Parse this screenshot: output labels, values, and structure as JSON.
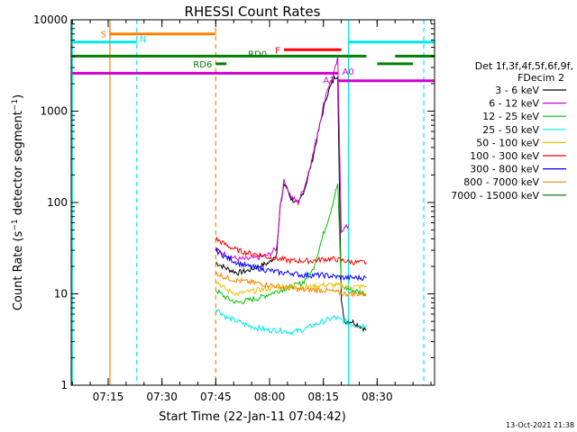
{
  "chart_data": {
    "type": "line",
    "title": "RHESSI Count Rates",
    "xlabel": "Start Time (22-Jan-11 07:04:42)",
    "ylabel": "Count Rate (s⁻¹ detector segment⁻¹)",
    "ylabel_main": "Count Rate (s",
    "ylabel_sup1": "−1",
    "ylabel_mid": " detector segment",
    "ylabel_sup2": "−1",
    "ylabel_end": ")",
    "y_scale": "log",
    "ylim": [
      1,
      10000
    ],
    "xlim": [
      "07:04:42",
      "08:46:00"
    ],
    "x_ticks": [
      "07:15",
      "07:30",
      "07:45",
      "08:00",
      "08:15",
      "08:30"
    ],
    "y_ticks": [
      "1",
      "10",
      "100",
      "1000",
      "10000"
    ],
    "legend_header": [
      "Det 1f,3f,4f,5f,6f,9f,",
      "FDecim 2"
    ],
    "legend_placement": "right",
    "series": [
      {
        "name": "3 - 6 keV",
        "color": "#000000",
        "points": [
          [
            "07:45:00",
            22
          ],
          [
            "07:48:00",
            19
          ],
          [
            "07:51:00",
            17
          ],
          [
            "07:54:00",
            18
          ],
          [
            "07:57:00",
            20
          ],
          [
            "08:00:00",
            22
          ],
          [
            "08:02:00",
            28
          ],
          [
            "08:03:00",
            90
          ],
          [
            "08:04:00",
            160
          ],
          [
            "08:05:00",
            140
          ],
          [
            "08:06:00",
            110
          ],
          [
            "08:08:00",
            95
          ],
          [
            "08:10:00",
            150
          ],
          [
            "08:12:00",
            300
          ],
          [
            "08:14:00",
            700
          ],
          [
            "08:16:00",
            1500
          ],
          [
            "08:18:00",
            2300
          ],
          [
            "08:19:00",
            2500
          ],
          [
            "08:20:00",
            8
          ],
          [
            "08:21:00",
            5
          ],
          [
            "08:23:00",
            5
          ],
          [
            "08:25:00",
            4.5
          ],
          [
            "08:27:00",
            4
          ]
        ]
      },
      {
        "name": "6 - 12 keV",
        "color": "#d000d0",
        "points": [
          [
            "07:45:00",
            30
          ],
          [
            "07:48:00",
            27
          ],
          [
            "07:51:00",
            24
          ],
          [
            "07:54:00",
            24
          ],
          [
            "07:57:00",
            25
          ],
          [
            "08:00:00",
            27
          ],
          [
            "08:02:00",
            32
          ],
          [
            "08:03:00",
            95
          ],
          [
            "08:04:00",
            170
          ],
          [
            "08:05:00",
            145
          ],
          [
            "08:06:00",
            115
          ],
          [
            "08:08:00",
            100
          ],
          [
            "08:10:00",
            160
          ],
          [
            "08:12:00",
            320
          ],
          [
            "08:14:00",
            750
          ],
          [
            "08:16:00",
            1700
          ],
          [
            "08:18:00",
            2600
          ],
          [
            "08:19:00",
            3800
          ],
          [
            "08:20:00",
            50
          ],
          [
            "08:22:00",
            55
          ]
        ]
      },
      {
        "name": "12 - 25 keV",
        "color": "#00c000",
        "points": [
          [
            "07:45:00",
            11
          ],
          [
            "07:48:00",
            9
          ],
          [
            "07:51:00",
            8
          ],
          [
            "07:54:00",
            8.5
          ],
          [
            "07:57:00",
            9
          ],
          [
            "08:00:00",
            10
          ],
          [
            "08:03:00",
            11
          ],
          [
            "08:06:00",
            12
          ],
          [
            "08:09:00",
            13
          ],
          [
            "08:12:00",
            18
          ],
          [
            "08:15:00",
            45
          ],
          [
            "08:17:00",
            80
          ],
          [
            "08:19:00",
            160
          ],
          [
            "08:20:00",
            12
          ],
          [
            "08:23:00",
            11
          ],
          [
            "08:27:00",
            10
          ]
        ]
      },
      {
        "name": "25 - 50 keV",
        "color": "#00e8e8",
        "points": [
          [
            "07:45:00",
            7
          ],
          [
            "07:48:00",
            5.5
          ],
          [
            "07:51:00",
            5
          ],
          [
            "07:54:00",
            4.5
          ],
          [
            "07:57:00",
            4.2
          ],
          [
            "08:00:00",
            4
          ],
          [
            "08:03:00",
            4
          ],
          [
            "08:06:00",
            3.8
          ],
          [
            "08:09:00",
            4
          ],
          [
            "08:12:00",
            4.5
          ],
          [
            "08:15:00",
            5
          ],
          [
            "08:18:00",
            5.5
          ],
          [
            "08:21:00",
            5
          ],
          [
            "08:24:00",
            4.5
          ],
          [
            "08:27:00",
            4.5
          ]
        ]
      },
      {
        "name": "50 - 100 keV",
        "color": "#e8c000",
        "points": [
          [
            "07:45:00",
            14
          ],
          [
            "07:48:00",
            11
          ],
          [
            "07:51:00",
            10
          ],
          [
            "07:54:00",
            10.5
          ],
          [
            "07:57:00",
            11
          ],
          [
            "08:00:00",
            11.5
          ],
          [
            "08:03:00",
            12
          ],
          [
            "08:06:00",
            12
          ],
          [
            "08:09:00",
            12
          ],
          [
            "08:12:00",
            12
          ],
          [
            "08:15:00",
            12.5
          ],
          [
            "08:18:00",
            12.5
          ],
          [
            "08:21:00",
            12
          ],
          [
            "08:24:00",
            12
          ],
          [
            "08:27:00",
            12
          ]
        ]
      },
      {
        "name": "100 - 300 keV",
        "color": "#ff0000",
        "points": [
          [
            "07:45:00",
            40
          ],
          [
            "07:48:00",
            34
          ],
          [
            "07:51:00",
            30
          ],
          [
            "07:54:00",
            28
          ],
          [
            "07:57:00",
            27
          ],
          [
            "08:00:00",
            25
          ],
          [
            "08:03:00",
            24
          ],
          [
            "08:06:00",
            23
          ],
          [
            "08:09:00",
            23
          ],
          [
            "08:12:00",
            23
          ],
          [
            "08:15:00",
            24
          ],
          [
            "08:18:00",
            24
          ],
          [
            "08:21:00",
            23
          ],
          [
            "08:24:00",
            22
          ],
          [
            "08:27:00",
            22
          ]
        ]
      },
      {
        "name": "300 - 800 keV",
        "color": "#0000ff",
        "points": [
          [
            "07:45:00",
            30
          ],
          [
            "07:48:00",
            25
          ],
          [
            "07:51:00",
            22
          ],
          [
            "07:54:00",
            20
          ],
          [
            "07:57:00",
            19
          ],
          [
            "08:00:00",
            18
          ],
          [
            "08:03:00",
            17
          ],
          [
            "08:06:00",
            17
          ],
          [
            "08:09:00",
            16
          ],
          [
            "08:12:00",
            16
          ],
          [
            "08:15:00",
            16
          ],
          [
            "08:18:00",
            15.5
          ],
          [
            "08:21:00",
            15
          ],
          [
            "08:24:00",
            15
          ],
          [
            "08:27:00",
            15
          ]
        ]
      },
      {
        "name": "800 - 7000 keV",
        "color": "#ff8000",
        "points": [
          [
            "07:45:00",
            17
          ],
          [
            "07:48:00",
            15
          ],
          [
            "07:51:00",
            14
          ],
          [
            "07:54:00",
            13.5
          ],
          [
            "07:57:00",
            13
          ],
          [
            "08:00:00",
            12.5
          ],
          [
            "08:03:00",
            12
          ],
          [
            "08:06:00",
            11.5
          ],
          [
            "08:09:00",
            11
          ],
          [
            "08:12:00",
            11
          ],
          [
            "08:15:00",
            11
          ],
          [
            "08:18:00",
            10.5
          ],
          [
            "08:21:00",
            10
          ],
          [
            "08:24:00",
            10
          ],
          [
            "08:27:00",
            10
          ]
        ]
      },
      {
        "name": "7000 - 15000 keV",
        "color": "#006600",
        "points": []
      }
    ],
    "annotations": {
      "vertical_lines": [
        {
          "time": "07:05:00",
          "color": "#00e8e8",
          "style": "solid"
        },
        {
          "time": "07:15:30",
          "color": "#ff8000",
          "style": "solid"
        },
        {
          "time": "07:23:00",
          "color": "#00e8e8",
          "style": "dashed"
        },
        {
          "time": "07:45:00",
          "color": "#ff8000",
          "style": "dashed"
        },
        {
          "time": "08:22:00",
          "color": "#00e8e8",
          "style": "solid"
        },
        {
          "time": "08:43:00",
          "color": "#00e8e8",
          "style": "dashed"
        }
      ],
      "bars": [
        {
          "label": "S",
          "color": "#ff8000",
          "start": "07:15:30",
          "end": "07:45:00",
          "y": 7000,
          "label_side": "left",
          "tick_left": true
        },
        {
          "label": "N",
          "color": "#00e8e8",
          "start": "07:05:00",
          "end": "07:23:00",
          "y": 5700,
          "label_side": "right"
        },
        {
          "label": "F",
          "color": "#ff0000",
          "start": "08:04:00",
          "end": "08:20:00",
          "y": 4700,
          "label_side": "left"
        },
        {
          "label": "RD0",
          "color": "#008000",
          "start": "07:05:00",
          "end": "08:27:00",
          "y": 4000,
          "label_side": "mid"
        },
        {
          "label": "",
          "color": "#008000",
          "start": "08:35:00",
          "end": "08:46:00",
          "y": 4000
        },
        {
          "label": "RD6",
          "color": "#008000",
          "start": "07:45:00",
          "end": "07:48:00",
          "y": 3300,
          "label_side": "left"
        },
        {
          "label": "",
          "color": "#008000",
          "start": "08:30:00",
          "end": "08:40:00",
          "y": 3300
        },
        {
          "label": "",
          "color": "#00e8e8",
          "start": "08:22:00",
          "end": "08:46:00",
          "y": 5700
        },
        {
          "label": "A1",
          "color": "#d000d0",
          "start": "07:05:00",
          "end": "08:19:00",
          "y": 2600,
          "label_side": "right"
        },
        {
          "label": "A0",
          "color": "#d000d0",
          "start": "08:19:00",
          "end": "08:46:00",
          "y": 2150,
          "label_side": "mid"
        }
      ]
    }
  },
  "footer_timestamp": "13-Oct-2021 21:38"
}
